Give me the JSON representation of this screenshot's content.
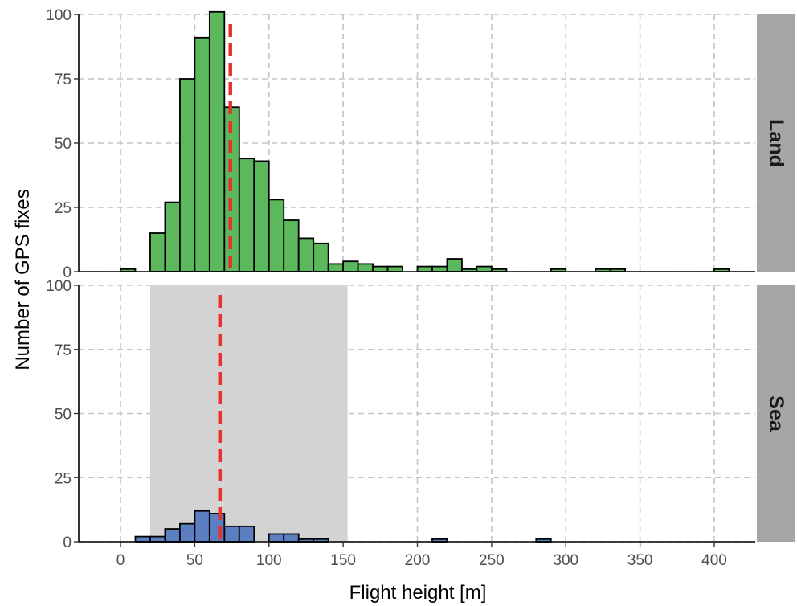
{
  "chart_data": {
    "type": "bar",
    "subtype": "faceted-histogram",
    "xlabel": "Flight height [m]",
    "ylabel": "Number of GPS fixes",
    "xlim": [
      -20,
      425
    ],
    "ylim": [
      0,
      100
    ],
    "x_ticks": [
      0,
      50,
      100,
      150,
      200,
      250,
      300,
      350,
      400
    ],
    "y_ticks": [
      0,
      25,
      50,
      75,
      100
    ],
    "bin_width": 10,
    "grid": "dashed major gridlines",
    "facets": [
      {
        "name": "Land",
        "bar_color": "#5cb85c",
        "mean_line": 74,
        "bins_start": [
          0,
          20,
          30,
          40,
          50,
          60,
          70,
          80,
          90,
          100,
          110,
          120,
          130,
          140,
          150,
          160,
          170,
          180,
          200,
          210,
          220,
          230,
          240,
          250,
          290,
          320,
          330,
          400
        ],
        "counts": [
          1,
          15,
          27,
          75,
          91,
          101,
          64,
          44,
          43,
          28,
          20,
          13,
          11,
          3,
          4,
          3,
          2,
          2,
          2,
          2,
          5,
          1,
          2,
          1,
          1,
          1,
          1,
          1
        ]
      },
      {
        "name": "Sea",
        "bar_color": "#5b7fc1",
        "mean_line": 67,
        "shaded_range": [
          20,
          153
        ],
        "bins_start": [
          10,
          20,
          30,
          40,
          50,
          60,
          70,
          80,
          100,
          110,
          120,
          130,
          210,
          280
        ],
        "counts": [
          2,
          2,
          5,
          7,
          12,
          11,
          6,
          6,
          3,
          3,
          1,
          1,
          1,
          1
        ]
      }
    ],
    "colors": {
      "mean_line": "#e8312f",
      "shade": "#d3d3d3",
      "strip_background": "#a6a6a6"
    }
  }
}
